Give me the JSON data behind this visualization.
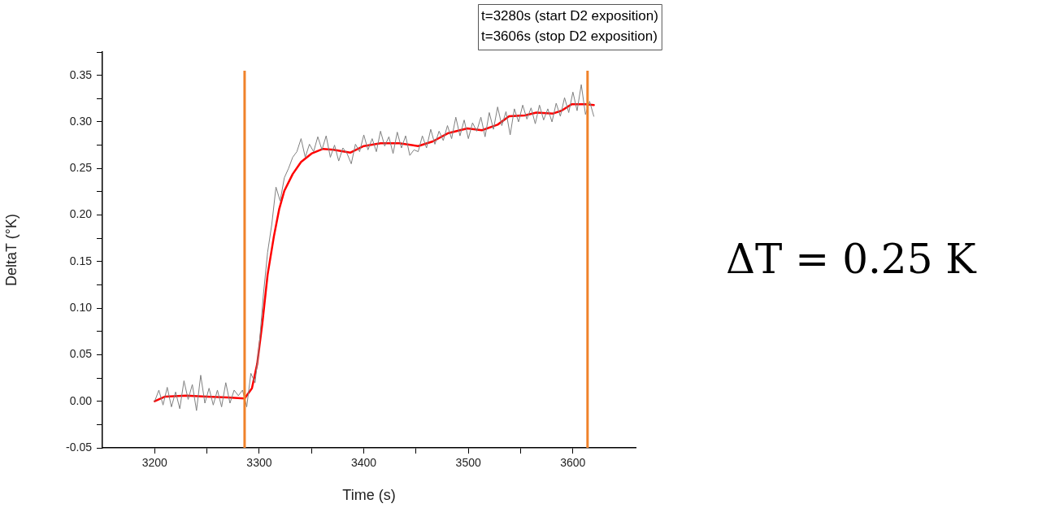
{
  "chart_data": {
    "type": "line",
    "xlabel": "Time (s)",
    "ylabel": "DeltaT (°K)",
    "xlim": [
      3150,
      3660
    ],
    "xticks": [
      3200,
      {
        "value": 3250,
        "label": null
      },
      3300,
      {
        "value": 3350,
        "label": null
      },
      3400,
      {
        "value": 3450,
        "label": null
      },
      3500,
      {
        "value": 3550,
        "label": null
      },
      3600
    ],
    "ylim": [
      -0.05,
      0.375
    ],
    "yticks": [
      -0.05,
      {
        "value": -0.025,
        "label": null
      },
      {
        "value": 0,
        "label": "0.00"
      },
      {
        "value": 0.025,
        "label": null
      },
      0.05,
      {
        "value": 0.075,
        "label": null
      },
      {
        "value": 0.1,
        "label": "0.10"
      },
      {
        "value": 0.125,
        "label": null
      },
      0.15,
      {
        "value": 0.175,
        "label": null
      },
      {
        "value": 0.2,
        "label": "0.20"
      },
      {
        "value": 0.225,
        "label": null
      },
      0.25,
      {
        "value": 0.275,
        "label": null
      },
      {
        "value": 0.3,
        "label": "0.30"
      },
      {
        "value": 0.325,
        "label": null
      },
      0.35,
      {
        "value": 0.375,
        "label": null
      }
    ],
    "grid": false,
    "legend": false,
    "marker": "none",
    "line_style": "solid",
    "series": [
      {
        "color": "#808080",
        "x": [
          3200,
          3204,
          3208,
          3212,
          3216,
          3220,
          3224,
          3228,
          3232,
          3236,
          3240,
          3244,
          3248,
          3252,
          3256,
          3260,
          3264,
          3268,
          3272,
          3276,
          3280,
          3284,
          3288,
          3292,
          3296,
          3300,
          3304,
          3308,
          3312,
          3316,
          3320,
          3324,
          3328,
          3332,
          3336,
          3340,
          3344,
          3348,
          3352,
          3356,
          3360,
          3364,
          3368,
          3372,
          3376,
          3380,
          3384,
          3388,
          3392,
          3396,
          3400,
          3404,
          3408,
          3412,
          3416,
          3420,
          3424,
          3428,
          3432,
          3436,
          3440,
          3444,
          3448,
          3452,
          3456,
          3460,
          3464,
          3468,
          3472,
          3476,
          3480,
          3484,
          3488,
          3492,
          3496,
          3500,
          3504,
          3508,
          3512,
          3516,
          3520,
          3524,
          3528,
          3532,
          3536,
          3540,
          3544,
          3548,
          3552,
          3556,
          3560,
          3564,
          3568,
          3572,
          3576,
          3580,
          3584,
          3588,
          3592,
          3596,
          3600,
          3604,
          3608,
          3612,
          3616,
          3620
        ],
        "values": [
          0.0,
          0.012,
          -0.004,
          0.015,
          -0.006,
          0.01,
          -0.008,
          0.022,
          0.002,
          0.018,
          -0.01,
          0.028,
          -0.002,
          0.014,
          -0.004,
          0.012,
          -0.006,
          0.02,
          -0.002,
          0.012,
          0.006,
          0.012,
          -0.006,
          0.03,
          0.02,
          0.06,
          0.115,
          0.16,
          0.19,
          0.23,
          0.215,
          0.24,
          0.25,
          0.262,
          0.268,
          0.282,
          0.262,
          0.276,
          0.268,
          0.284,
          0.27,
          0.285,
          0.262,
          0.275,
          0.258,
          0.272,
          0.266,
          0.255,
          0.276,
          0.268,
          0.286,
          0.27,
          0.282,
          0.268,
          0.29,
          0.274,
          0.284,
          0.266,
          0.289,
          0.272,
          0.285,
          0.264,
          0.27,
          0.268,
          0.285,
          0.272,
          0.292,
          0.276,
          0.29,
          0.28,
          0.296,
          0.282,
          0.305,
          0.285,
          0.302,
          0.282,
          0.299,
          0.29,
          0.305,
          0.284,
          0.31,
          0.292,
          0.316,
          0.296,
          0.311,
          0.286,
          0.314,
          0.3,
          0.318,
          0.303,
          0.315,
          0.298,
          0.318,
          0.302,
          0.314,
          0.3,
          0.32,
          0.306,
          0.326,
          0.31,
          0.332,
          0.312,
          0.34,
          0.308,
          0.322,
          0.306
        ]
      },
      {
        "color": "#ff0000",
        "x": [
          3200,
          3210,
          3230,
          3250,
          3270,
          3286,
          3293,
          3298,
          3303,
          3308,
          3314,
          3319,
          3324,
          3332,
          3340,
          3350,
          3361,
          3371,
          3387,
          3400,
          3416,
          3434,
          3452,
          3466,
          3481,
          3499,
          3513,
          3528,
          3539,
          3554,
          3565,
          3581,
          3589,
          3599,
          3612,
          3620
        ],
        "values": [
          0.0,
          0.005,
          0.006,
          0.005,
          0.004,
          0.003,
          0.014,
          0.04,
          0.084,
          0.136,
          0.177,
          0.206,
          0.226,
          0.244,
          0.257,
          0.266,
          0.271,
          0.27,
          0.267,
          0.274,
          0.277,
          0.277,
          0.274,
          0.279,
          0.288,
          0.293,
          0.291,
          0.297,
          0.306,
          0.307,
          0.31,
          0.309,
          0.312,
          0.319,
          0.319,
          0.318
        ]
      }
    ],
    "ref_lines": [
      {
        "axis": "x",
        "value": 3286,
        "color": "#f0822a"
      },
      {
        "axis": "x",
        "value": 3614,
        "color": "#f0822a"
      }
    ],
    "annotations": [
      "t=3280s (start D2 exposition)",
      "t=3606s (stop D2 exposition)",
      "ΔT = 0.25 K"
    ]
  }
}
